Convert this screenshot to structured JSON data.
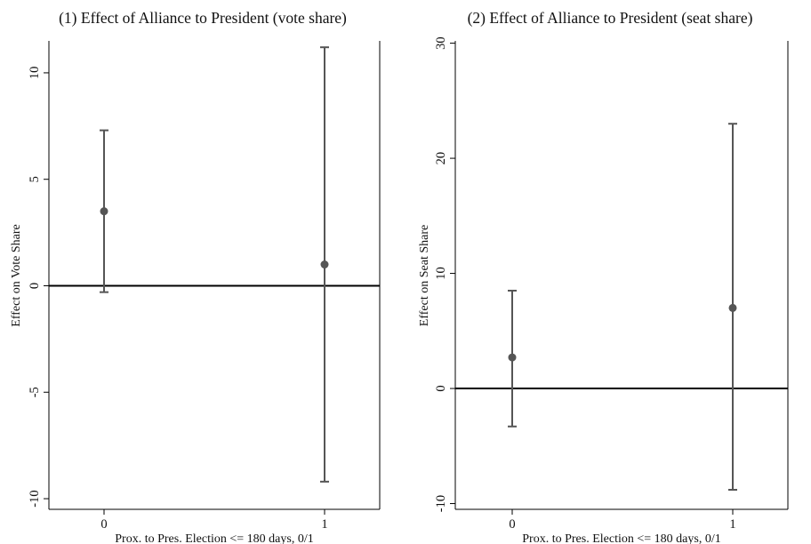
{
  "chart_data": [
    {
      "type": "scatter",
      "title": "(1) Effect of Alliance to President (vote share)",
      "xlabel": "Prox. to Pres. Election <= 180 days,  0/1",
      "ylabel": "Effect on Vote Share",
      "categories": [
        "0",
        "1"
      ],
      "yticks": [
        "10",
        "5",
        "0",
        "-5",
        "-10"
      ],
      "ylim": [
        -10.5,
        11.5
      ],
      "reference_line": 0,
      "series": [
        {
          "points": [
            {
              "x": "0",
              "y": 3.5,
              "low": -0.3,
              "high": 7.3
            },
            {
              "x": "1",
              "y": 1.0,
              "low": -9.2,
              "high": 11.2
            }
          ]
        }
      ],
      "grid": false,
      "marker_color": "#555555"
    },
    {
      "type": "scatter",
      "title": "(2) Effect of Alliance to President (seat share)",
      "xlabel": "Prox. to Pres. Election <= 180 days,  0/1",
      "ylabel": "Effect on Seat Share",
      "categories": [
        "0",
        "1"
      ],
      "yticks": [
        "30",
        "20",
        "10",
        "0",
        "-10"
      ],
      "ylim": [
        -10.5,
        30.2
      ],
      "reference_line": 0,
      "series": [
        {
          "points": [
            {
              "x": "0",
              "y": 2.7,
              "low": -3.3,
              "high": 8.5
            },
            {
              "x": "1",
              "y": 7.0,
              "low": -8.8,
              "high": 23.0
            }
          ]
        }
      ],
      "grid": false,
      "marker_color": "#555555"
    }
  ]
}
